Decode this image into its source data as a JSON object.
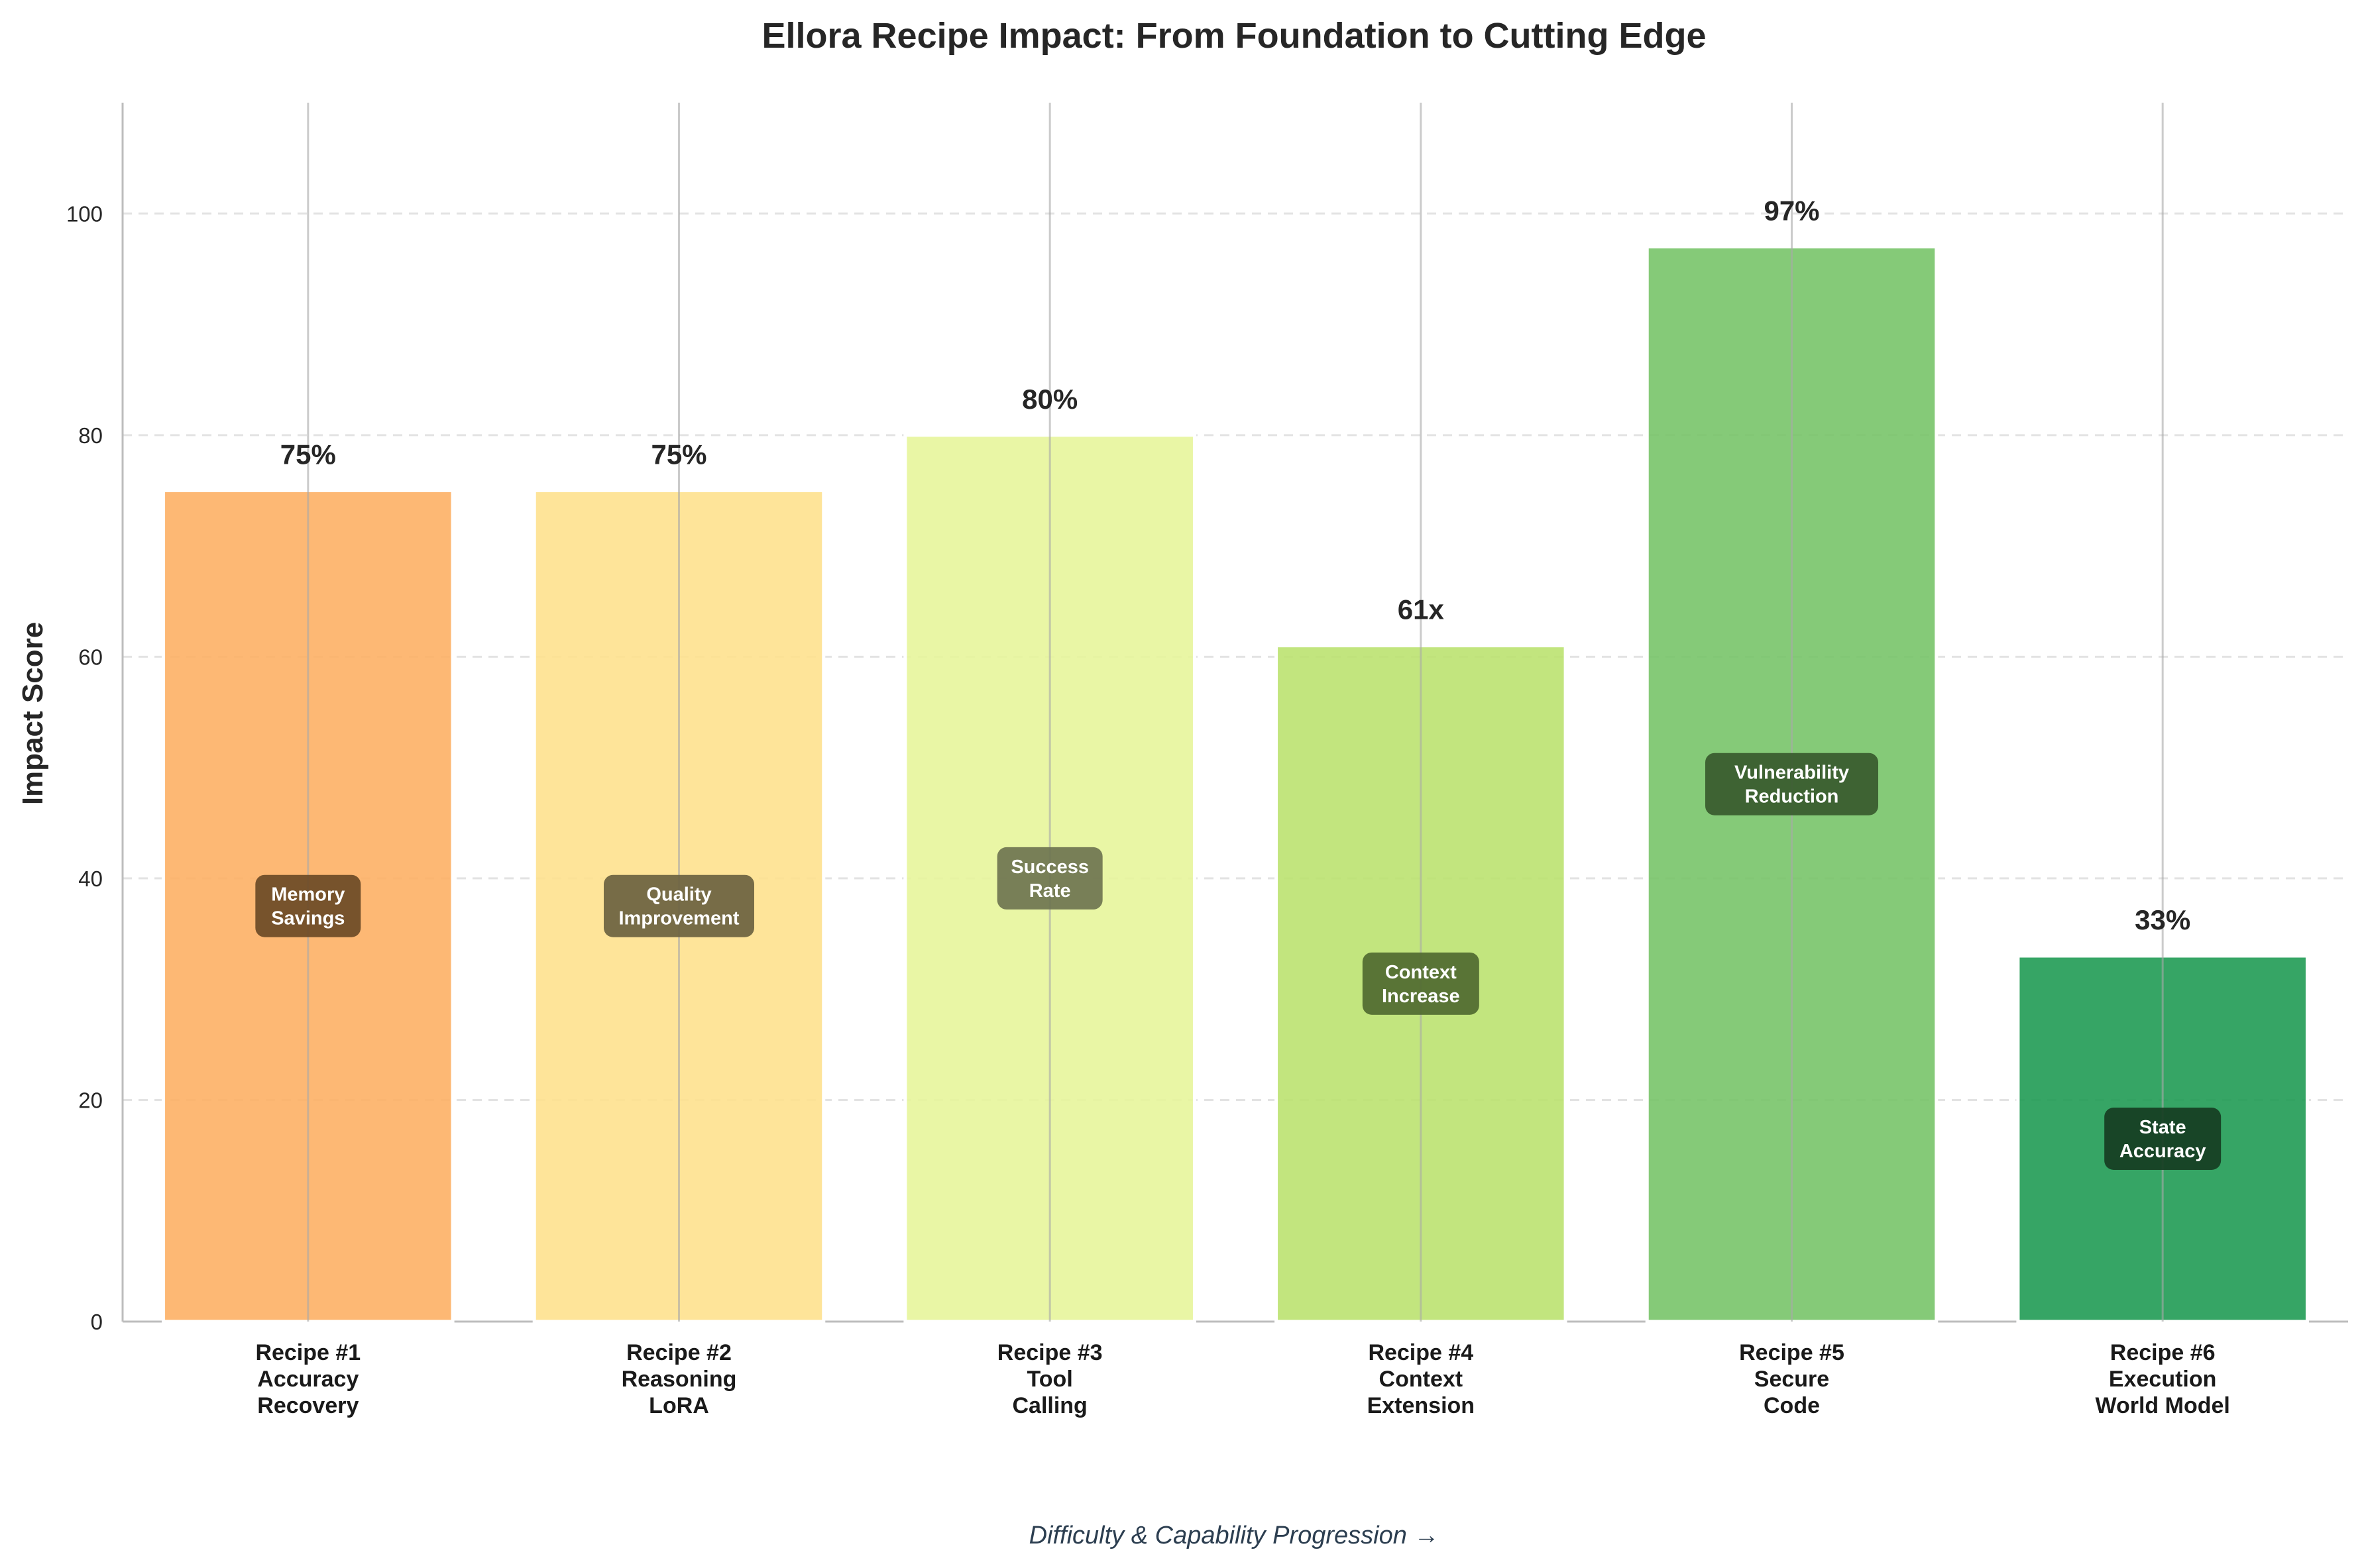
{
  "chart_data": {
    "type": "bar",
    "title": "Ellora Recipe Impact: From Foundation to Cutting Edge",
    "ylabel": "Impact Score",
    "xlabel": "Difficulty & Capability Progression →",
    "ylim": [
      0,
      110
    ],
    "yticks": [
      0,
      20,
      40,
      60,
      80,
      100
    ],
    "grid": "horizontal dashed",
    "categories": [
      [
        "Recipe #1",
        "Accuracy",
        "Recovery"
      ],
      [
        "Recipe #2",
        "Reasoning",
        "LoRA"
      ],
      [
        "Recipe #3",
        "Tool",
        "Calling"
      ],
      [
        "Recipe #4",
        "Context",
        "Extension"
      ],
      [
        "Recipe #5",
        "Secure",
        "Code"
      ],
      [
        "Recipe #6",
        "Execution",
        "World Model"
      ]
    ],
    "values": [
      75,
      75,
      80,
      61,
      97,
      33
    ],
    "value_labels": [
      "75%",
      "75%",
      "80%",
      "61x",
      "97%",
      "33%"
    ],
    "metric_labels": [
      [
        "Memory",
        "Savings"
      ],
      [
        "Quality",
        "Improvement"
      ],
      [
        "Success",
        "Rate"
      ],
      [
        "Context",
        "Increase"
      ],
      [
        "Vulnerability",
        "Reduction"
      ],
      [
        "State",
        "Accuracy"
      ]
    ],
    "colors": [
      "#fdae61",
      "#fee08b",
      "#e6f598",
      "#b9e16c",
      "#74c365",
      "#1a9850"
    ],
    "label_box_colors": [
      "#6b4a26",
      "#6b6240",
      "#6e7450",
      "#506a30",
      "#385a2e",
      "#163d22"
    ]
  }
}
